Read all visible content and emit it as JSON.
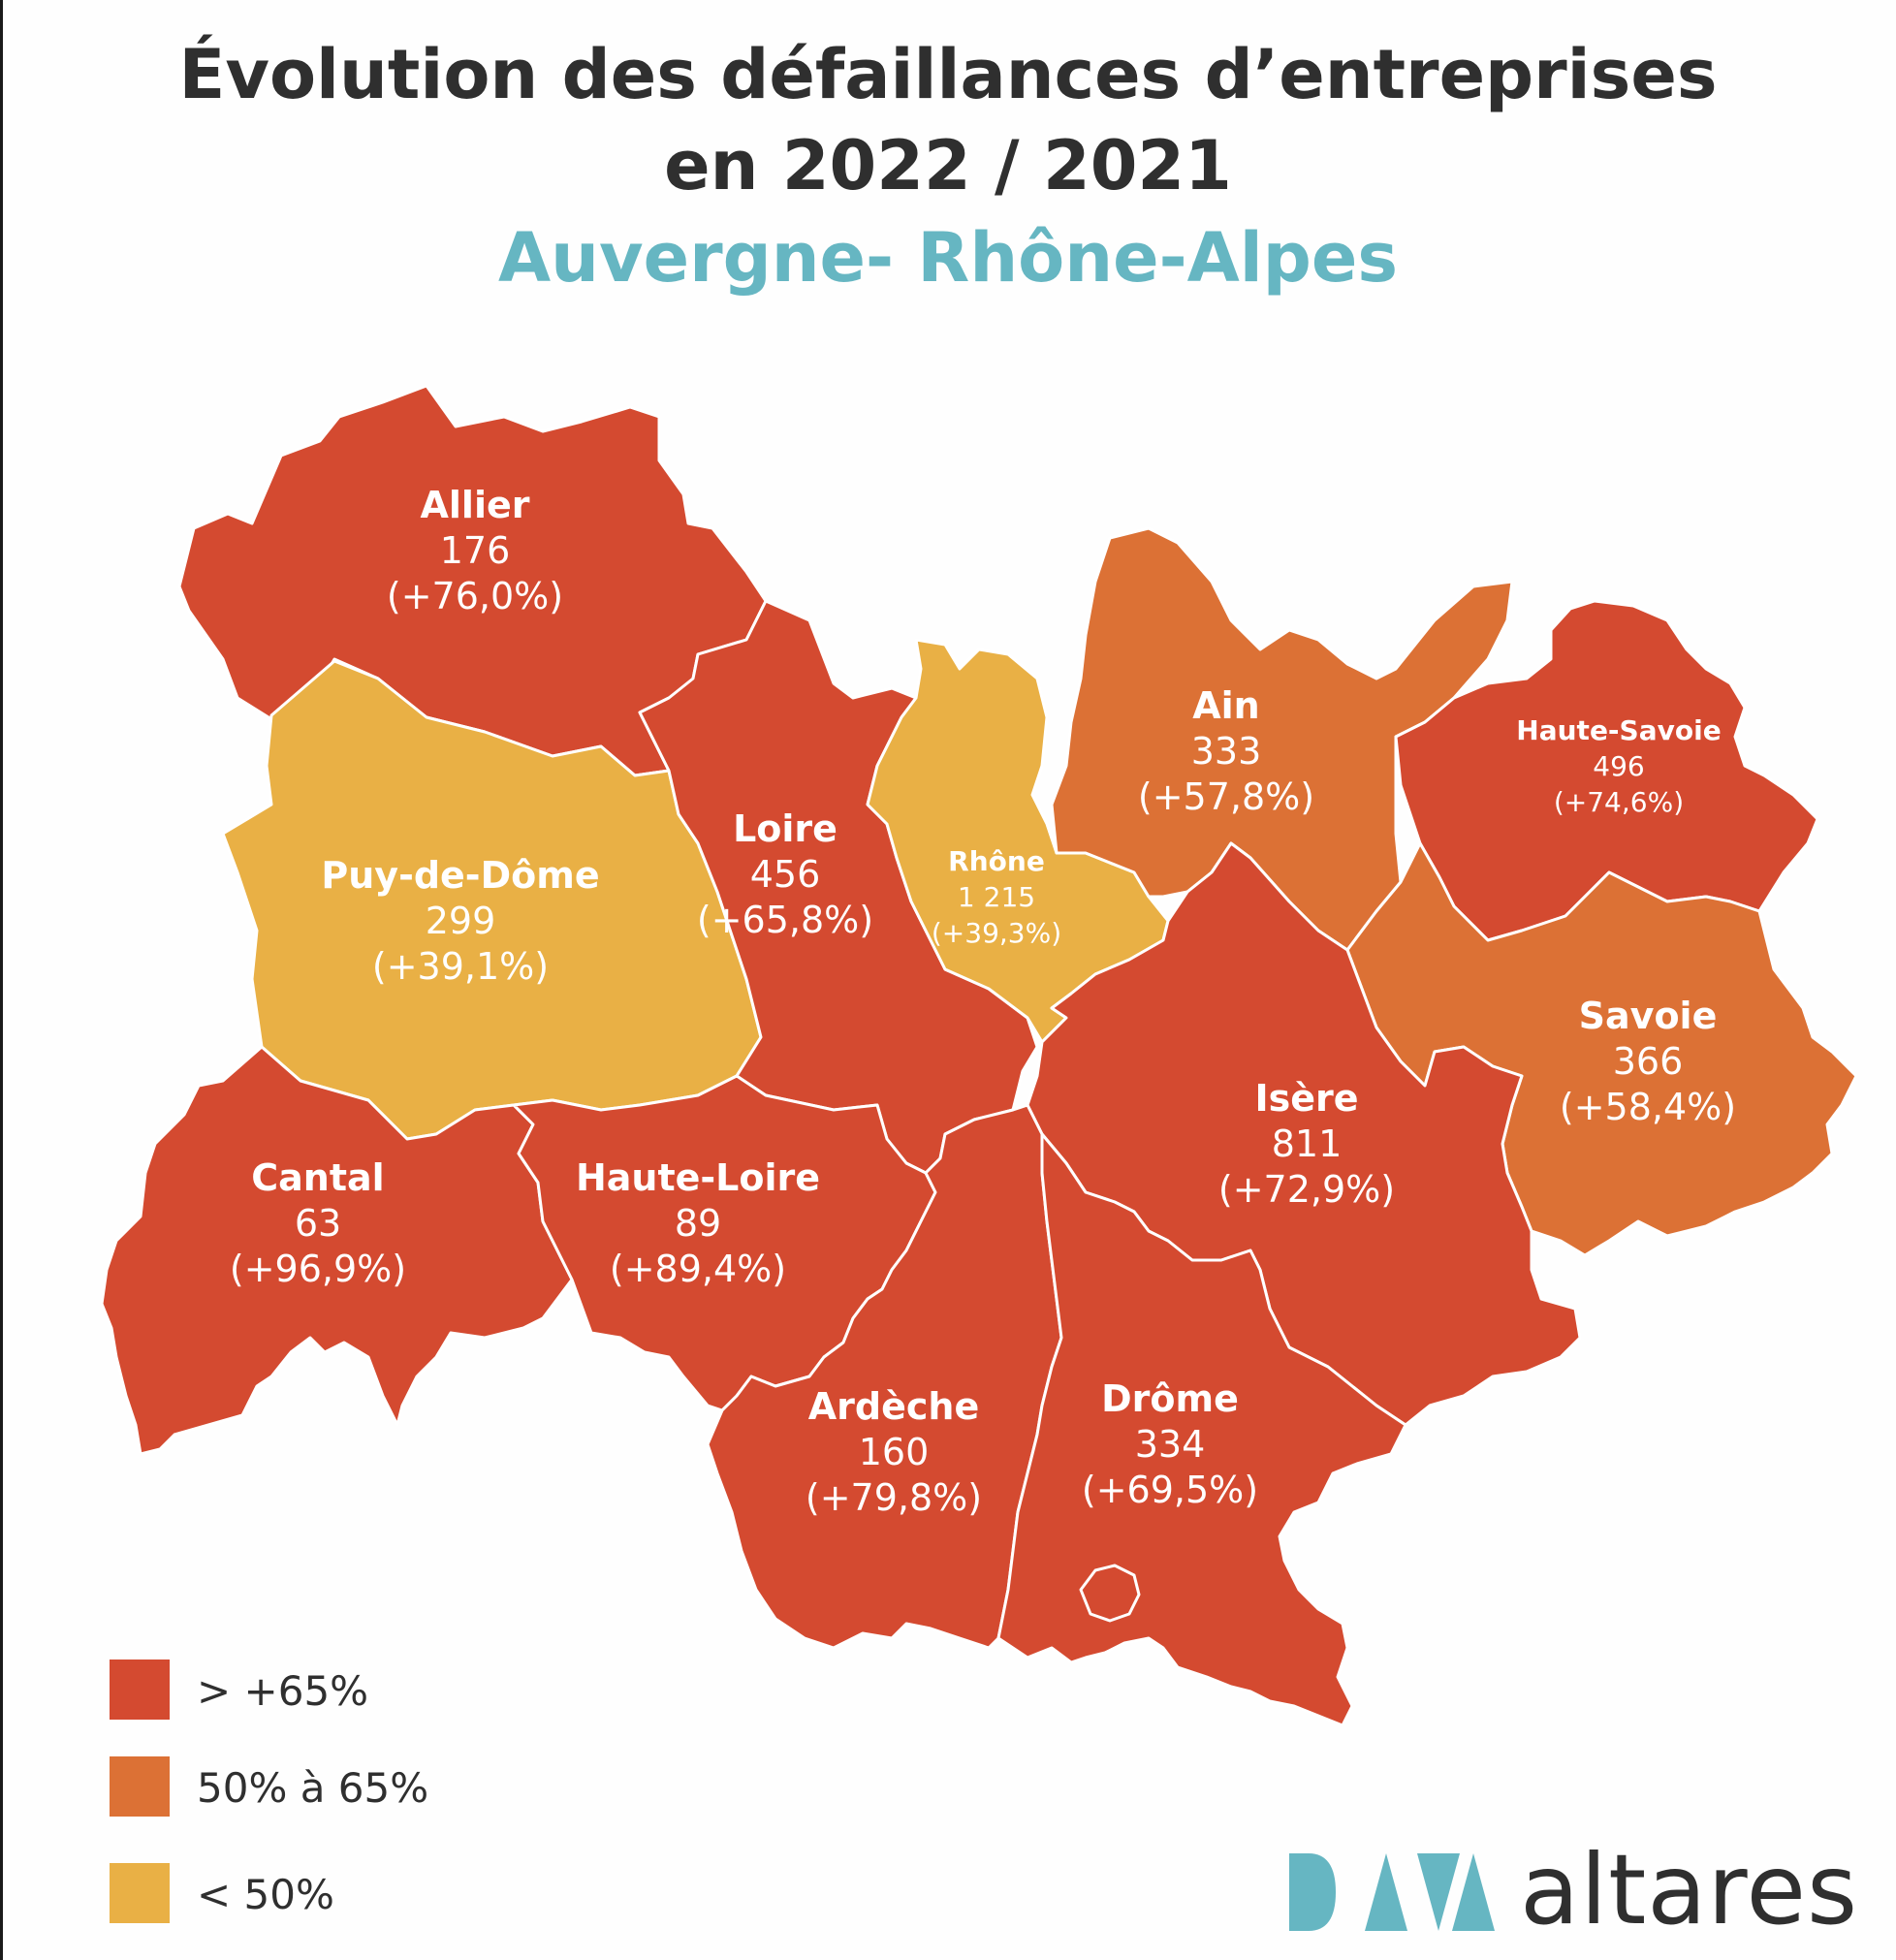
{
  "header": {
    "title_line1": "Évolution des défaillances d’entreprises",
    "title_line2": "en 2022 / 2021",
    "subtitle": "Auvergne- Rhône-Alpes"
  },
  "colors": {
    "above_65": "#d44a30",
    "from_50_to_65": "#dc7135",
    "below_50": "#e9b045",
    "subtitle": "#66b6c2",
    "logo_mark": "#66b6c2"
  },
  "regions": {
    "allier": {
      "name": "Allier",
      "count": "176",
      "change": "(+76,0%)",
      "class": "above_65"
    },
    "puy_de_dome": {
      "name": "Puy-de-Dôme",
      "count": "299",
      "change": "(+39,1%)",
      "class": "below_50"
    },
    "loire": {
      "name": "Loire",
      "count": "456",
      "change": "(+65,8%)",
      "class": "above_65"
    },
    "rhone": {
      "name": "Rhône",
      "count": "1 215",
      "change": "(+39,3%)",
      "class": "below_50"
    },
    "ain": {
      "name": "Ain",
      "count": "333",
      "change": "(+57,8%)",
      "class": "from_50_to_65"
    },
    "haute_savoie": {
      "name": "Haute-Savoie",
      "count": "496",
      "change": "(+74,6%)",
      "class": "above_65"
    },
    "savoie": {
      "name": "Savoie",
      "count": "366",
      "change": "(+58,4%)",
      "class": "from_50_to_65"
    },
    "isere": {
      "name": "Isère",
      "count": "811",
      "change": "(+72,9%)",
      "class": "above_65"
    },
    "cantal": {
      "name": "Cantal",
      "count": "63",
      "change": "(+96,9%)",
      "class": "above_65"
    },
    "haute_loire": {
      "name": "Haute-Loire",
      "count": "89",
      "change": "(+89,4%)",
      "class": "above_65"
    },
    "ardeche": {
      "name": "Ardèche",
      "count": "160",
      "change": "(+79,8%)",
      "class": "above_65"
    },
    "drome": {
      "name": "Drôme",
      "count": "334",
      "change": "(+69,5%)",
      "class": "above_65"
    }
  },
  "legend": [
    {
      "label": "> +65%",
      "class": "above_65"
    },
    {
      "label": "50% à 65%",
      "class": "from_50_to_65"
    },
    {
      "label": "< 50%",
      "class": "below_50"
    }
  ],
  "logo": {
    "mark": "DATA",
    "text": "altares"
  }
}
